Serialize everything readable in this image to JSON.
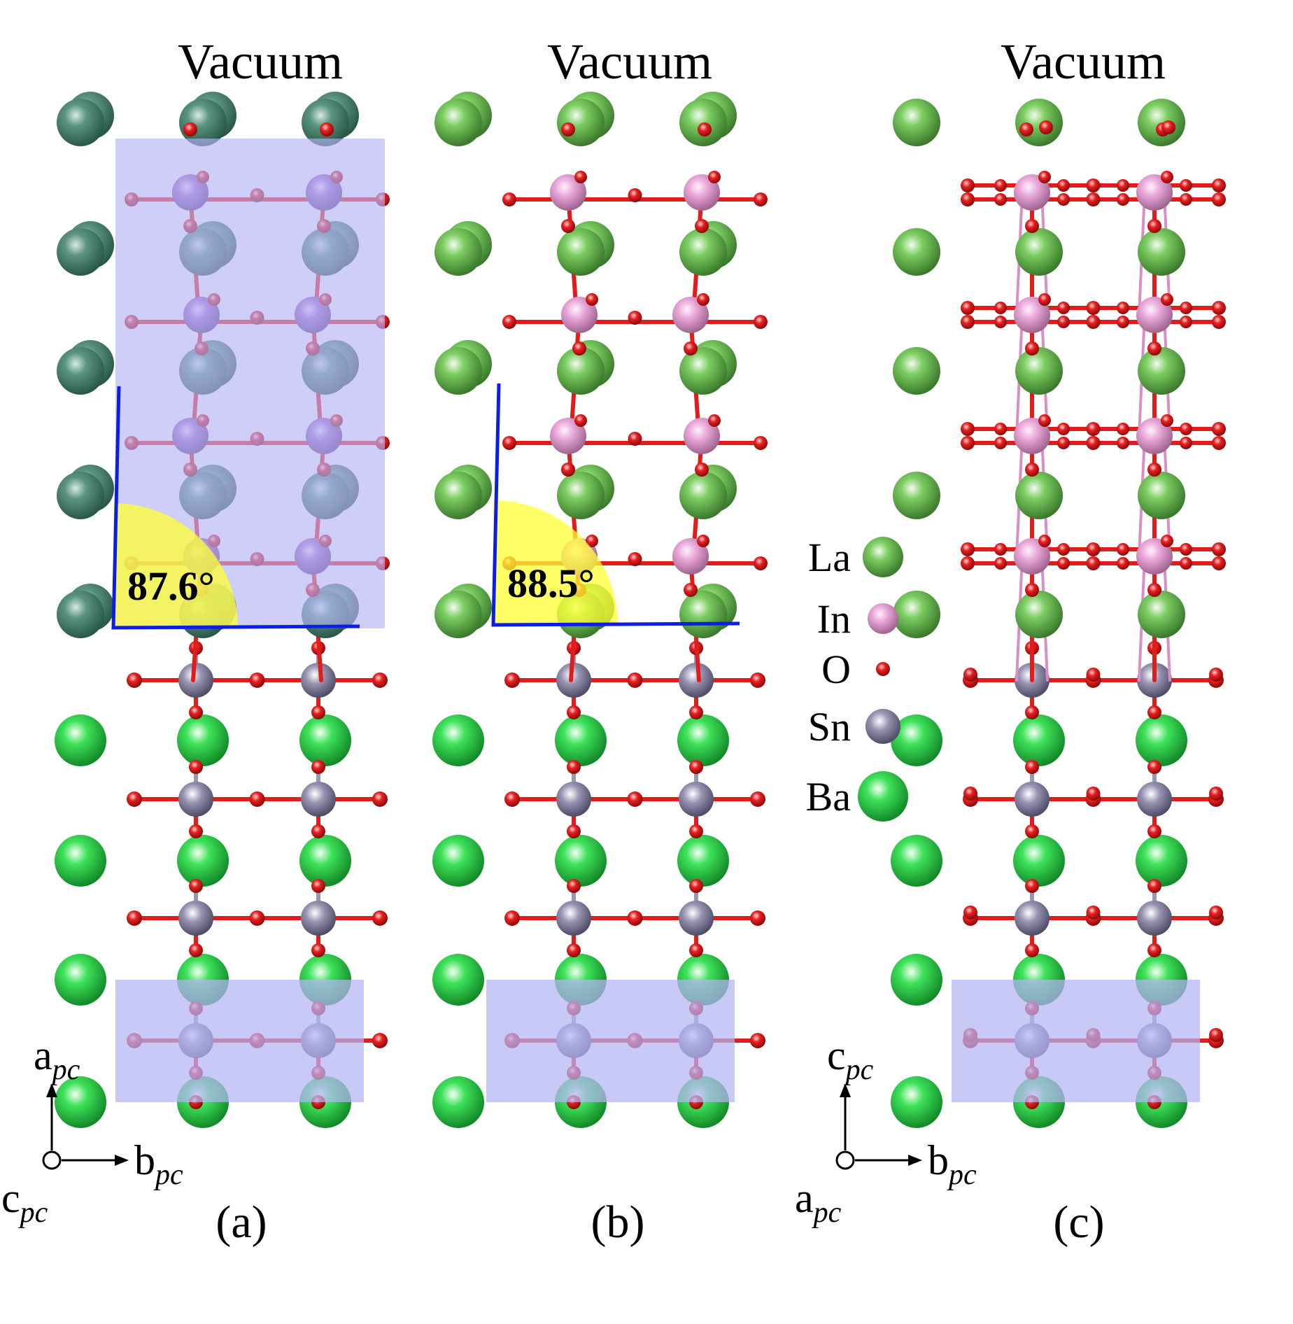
{
  "panels": [
    {
      "id": "a",
      "top_label": "Vacuum",
      "caption": "(a)",
      "angle": "87.6°",
      "cap_color": "#a060c8",
      "la_tint": "#4d8a78",
      "view": "side"
    },
    {
      "id": "b",
      "top_label": "Vacuum",
      "caption": "(b)",
      "angle": "88.5°",
      "cap_color": "#e8a6d8",
      "la_tint": "#72c458",
      "view": "side"
    },
    {
      "id": "c",
      "top_label": "Vacuum",
      "caption": "(c)",
      "angle": "",
      "cap_color": "#e8a6d8",
      "la_tint": "#72c458",
      "view": "front"
    }
  ],
  "legend": [
    {
      "label": "La",
      "color": "#72c458",
      "icon": "la-atom-icon"
    },
    {
      "label": "In",
      "color": "#e8a6d8",
      "icon": "in-atom-icon"
    },
    {
      "label": "O",
      "color": "#e21b1b",
      "icon": "o-atom-icon"
    },
    {
      "label": "Sn",
      "color": "#8b88a8",
      "icon": "sn-atom-icon"
    },
    {
      "label": "Ba",
      "color": "#2fd84a",
      "icon": "ba-atom-icon"
    }
  ],
  "axes": [
    {
      "panel": "a",
      "up": "a",
      "right": "b",
      "out": "c",
      "sub": "pc"
    },
    {
      "panel": "c",
      "up": "c",
      "right": "b",
      "out": "a",
      "sub": "pc"
    }
  ],
  "colors": {
    "highlight_box": "#b4b4f5",
    "angle_fill": "#ffff33",
    "angle_lines": "#0a1ee6",
    "oxygen": "#e21b1b",
    "tin": "#8b88a8",
    "barium": "#2fd84a"
  }
}
